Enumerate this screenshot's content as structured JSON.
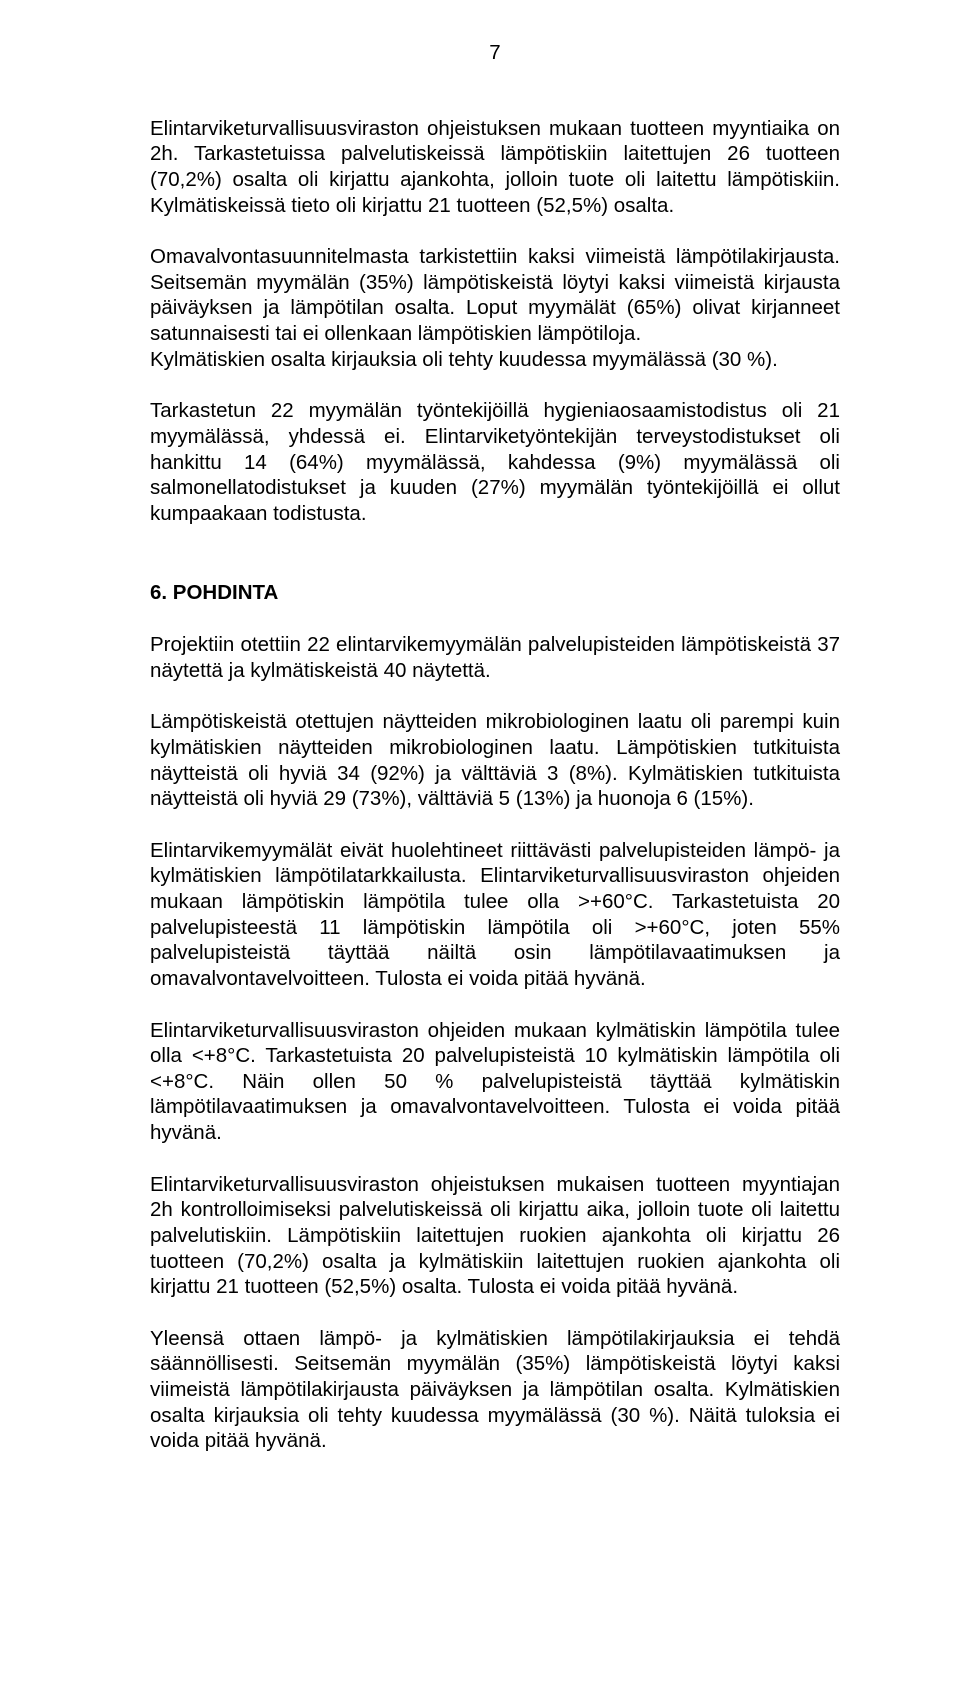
{
  "page_number": "7",
  "typography": {
    "font_family": "Arial",
    "body_fontsize_pt": 15,
    "heading_fontweight": "bold",
    "text_color": "#000000",
    "background_color": "#ffffff",
    "alignment": "justify"
  },
  "paragraphs": {
    "p1": "Elintarviketurvallisuusviraston ohjeistuksen mukaan tuotteen myyntiaika on 2h. Tarkastetuissa palvelutiskeissä lämpötiskiin laitettujen 26 tuotteen (70,2%) osalta oli kirjattu ajankohta, jolloin tuote oli laitettu lämpötiskiin. Kylmätiskeissä tieto oli kirjattu 21 tuotteen (52,5%) osalta.",
    "p2": "Omavalvontasuunnitelmasta tarkistettiin kaksi viimeistä lämpötilakirjausta. Seitsemän myymälän (35%) lämpötiskeistä löytyi kaksi viimeistä kirjausta päiväyksen ja lämpötilan osalta. Loput myymälät (65%) olivat kirjanneet satunnaisesti tai ei ollenkaan lämpötiskien lämpötiloja.",
    "p3": "Kylmätiskien osalta kirjauksia oli tehty kuudessa myymälässä (30 %).",
    "p4": "Tarkastetun 22 myymälän työntekijöillä hygieniaosaamistodistus oli 21 myymälässä, yhdessä ei. Elintarviketyöntekijän terveystodistukset oli hankittu 14 (64%) myymälässä, kahdessa (9%) myymälässä oli salmonellatodistukset ja kuuden (27%) myymälän työntekijöillä ei ollut kumpaakaan todistusta.",
    "p5": "Projektiin otettiin 22 elintarvikemyymälän palvelupisteiden lämpötiskeistä 37 näytettä ja kylmätiskeistä 40 näytettä.",
    "p6": "Lämpötiskeistä otettujen näytteiden mikrobiologinen laatu oli parempi kuin kylmätiskien näytteiden mikrobiologinen laatu. Lämpötiskien tutkituista näytteistä oli hyviä 34 (92%) ja välttäviä 3 (8%). Kylmätiskien tutkituista näytteistä oli hyviä 29 (73%), välttäviä 5 (13%) ja huonoja 6 (15%).",
    "p7": "Elintarvikemyymälät eivät huolehtineet riittävästi palvelupisteiden lämpö- ja kylmätiskien lämpötilatarkkailusta. Elintarviketurvallisuusviraston ohjeiden mukaan lämpötiskin lämpötila tulee olla >+60°C. Tarkastetuista 20 palvelupisteestä 11 lämpötiskin lämpötila oli >+60°C, joten 55% palvelupisteistä täyttää näiltä osin lämpötilavaatimuksen ja omavalvontavelvoitteen. Tulosta ei voida pitää hyvänä.",
    "p8": "Elintarviketurvallisuusviraston ohjeiden mukaan kylmätiskin lämpötila tulee olla <+8°C. Tarkastetuista 20 palvelupisteistä 10 kylmätiskin lämpötila oli <+8°C. Näin ollen 50 % palvelupisteistä täyttää kylmätiskin lämpötilavaatimuksen ja omavalvontavelvoitteen. Tulosta ei voida pitää hyvänä.",
    "p9": "Elintarviketurvallisuusviraston ohjeistuksen mukaisen tuotteen myyntiajan 2h kontrolloimiseksi palvelutiskeissä oli kirjattu aika, jolloin tuote oli laitettu palvelutiskiin. Lämpötiskiin laitettujen ruokien ajankohta oli kirjattu 26 tuotteen (70,2%) osalta ja kylmätiskiin laitettujen ruokien ajankohta oli kirjattu 21 tuotteen (52,5%) osalta. Tulosta ei voida pitää hyvänä.",
    "p10": "Yleensä ottaen lämpö- ja kylmätiskien lämpötilakirjauksia ei tehdä säännöllisesti. Seitsemän myymälän (35%) lämpötiskeistä löytyi kaksi viimeistä lämpötilakirjausta päiväyksen ja lämpötilan osalta. Kylmätiskien osalta kirjauksia oli tehty kuudessa myymälässä (30 %). Näitä tuloksia ei voida pitää hyvänä."
  },
  "heading": "6. POHDINTA"
}
